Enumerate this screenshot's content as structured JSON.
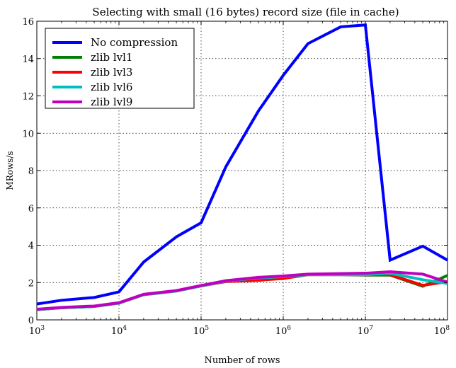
{
  "chart_data": {
    "type": "line",
    "title": "Selecting with small (16 bytes) record size (file in cache)",
    "xlabel": "Number of rows",
    "ylabel": "MRows/s",
    "xscale": "log",
    "xlim": [
      1000,
      100000000
    ],
    "ylim": [
      0,
      16
    ],
    "grid": true,
    "legend_position": "top-left",
    "x_tick_labels": [
      {
        "base": "10",
        "exp": "3"
      },
      {
        "base": "10",
        "exp": "4"
      },
      {
        "base": "10",
        "exp": "5"
      },
      {
        "base": "10",
        "exp": "6"
      },
      {
        "base": "10",
        "exp": "7"
      },
      {
        "base": "10",
        "exp": "8"
      }
    ],
    "x_tick_values": [
      1000,
      10000,
      100000,
      1000000,
      10000000,
      100000000
    ],
    "y_ticks": [
      0,
      2,
      4,
      6,
      8,
      10,
      12,
      14,
      16
    ],
    "x": [
      1000,
      2000,
      5000,
      10000,
      20000,
      50000,
      100000,
      200000,
      500000,
      1000000,
      2000000,
      5000000,
      10000000,
      20000000,
      50000000,
      100000000
    ],
    "series": [
      {
        "name": "No compression",
        "color": "#0000ff",
        "values": [
          0.85,
          1.05,
          1.2,
          1.5,
          3.1,
          4.45,
          5.2,
          8.2,
          11.2,
          13.1,
          14.8,
          15.7,
          15.8,
          3.2,
          3.95,
          3.2
        ]
      },
      {
        "name": "zlib lvl1",
        "color": "#008000",
        "values": [
          0.55,
          0.65,
          0.72,
          0.9,
          1.35,
          1.55,
          1.82,
          2.08,
          2.25,
          2.32,
          2.42,
          2.42,
          2.4,
          2.4,
          1.8,
          2.38
        ]
      },
      {
        "name": "zlib lvl3",
        "color": "#ff0000",
        "values": [
          0.55,
          0.65,
          0.72,
          0.9,
          1.35,
          1.55,
          1.82,
          2.05,
          2.12,
          2.22,
          2.42,
          2.42,
          2.42,
          2.42,
          1.85,
          2.05
        ]
      },
      {
        "name": "zlib lvl6",
        "color": "#00bfbf",
        "values": [
          0.55,
          0.65,
          0.72,
          0.9,
          1.35,
          1.55,
          1.82,
          2.08,
          2.25,
          2.32,
          2.42,
          2.42,
          2.42,
          2.5,
          2.15,
          1.95
        ]
      },
      {
        "name": "zlib lvl9",
        "color": "#bf00bf",
        "values": [
          0.57,
          0.67,
          0.74,
          0.92,
          1.37,
          1.57,
          1.84,
          2.1,
          2.28,
          2.35,
          2.45,
          2.48,
          2.5,
          2.58,
          2.45,
          2.02
        ]
      }
    ]
  }
}
